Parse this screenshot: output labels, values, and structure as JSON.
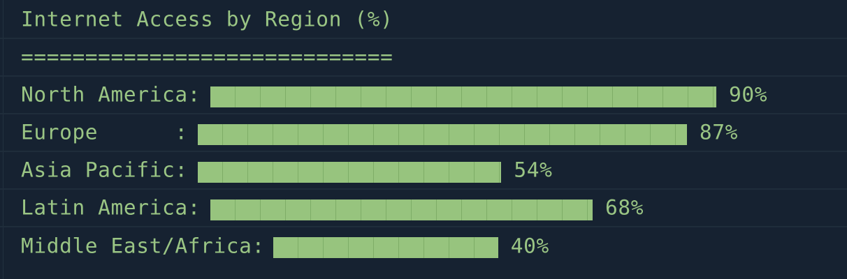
{
  "title": "Internet Access by Region (%)",
  "separator": "=============================",
  "colors": {
    "background": "#162231",
    "text": "#9ac584",
    "bar": "#97c47e"
  },
  "chart_data": {
    "type": "bar",
    "orientation": "horizontal",
    "title": "Internet Access by Region (%)",
    "categories": [
      "North America",
      "Europe",
      "Asia Pacific",
      "Latin America",
      "Middle East/Africa"
    ],
    "values": [
      90,
      87,
      54,
      68,
      40
    ],
    "unit": "%",
    "xlim": [
      0,
      100
    ],
    "rows": [
      {
        "label": "North America:",
        "value": 90,
        "value_label": "90%"
      },
      {
        "label": "Europe      :",
        "value": 87,
        "value_label": "87%"
      },
      {
        "label": "Asia Pacific:",
        "value": 54,
        "value_label": "54%"
      },
      {
        "label": "Latin America:",
        "value": 68,
        "value_label": "68%"
      },
      {
        "label": "Middle East/Africa:",
        "value": 40,
        "value_label": "40%"
      }
    ]
  }
}
